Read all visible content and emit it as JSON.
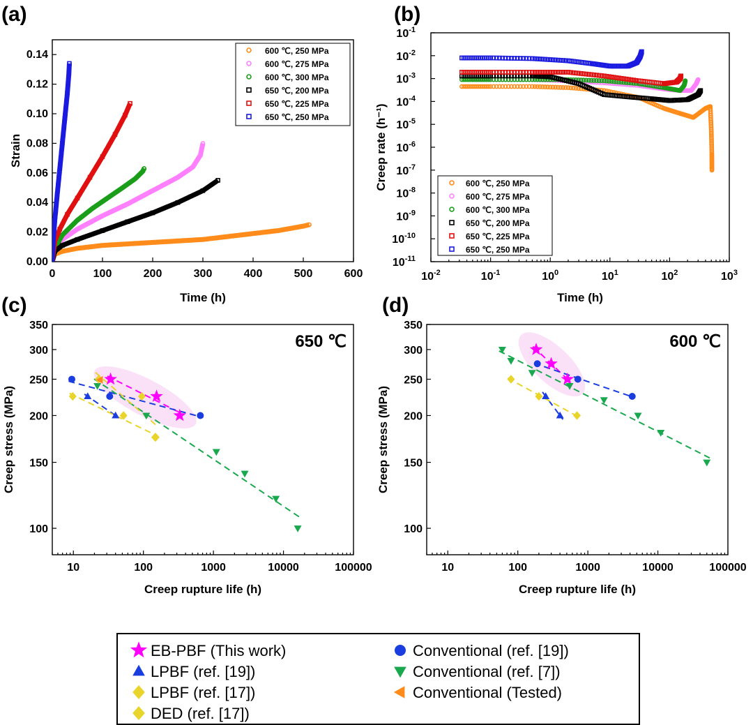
{
  "chart_data": [
    {
      "panel": "(a)",
      "type": "line",
      "xlabel": "Time (h)",
      "ylabel": "Strain",
      "xlim": [
        0,
        600
      ],
      "ylim": [
        0,
        0.15
      ],
      "xticks": [
        "0",
        "100",
        "200",
        "300",
        "400",
        "500",
        "600"
      ],
      "yticks": [
        "0.00",
        "0.02",
        "0.04",
        "0.06",
        "0.08",
        "0.10",
        "0.12",
        "0.14"
      ],
      "legend_position": "top-right",
      "series": [
        {
          "name": "600 ℃, 250 MPa",
          "color": "#ff8c1a",
          "marker": "circle",
          "x": [
            0,
            5,
            20,
            50,
            100,
            150,
            200,
            250,
            300,
            350,
            400,
            450,
            500,
            512
          ],
          "y": [
            0,
            0.005,
            0.007,
            0.009,
            0.011,
            0.012,
            0.013,
            0.014,
            0.015,
            0.017,
            0.019,
            0.021,
            0.024,
            0.025
          ]
        },
        {
          "name": "600 ℃, 275 MPa",
          "color": "#ff80ff",
          "marker": "circle",
          "x": [
            0,
            5,
            20,
            50,
            100,
            150,
            200,
            250,
            280,
            295,
            300
          ],
          "y": [
            0,
            0.008,
            0.015,
            0.022,
            0.031,
            0.039,
            0.048,
            0.057,
            0.064,
            0.072,
            0.08
          ]
        },
        {
          "name": "600 ℃, 300 MPa",
          "color": "#1a9e1a",
          "marker": "circle",
          "x": [
            0,
            5,
            20,
            50,
            80,
            110,
            140,
            165,
            180,
            183
          ],
          "y": [
            0,
            0.009,
            0.018,
            0.028,
            0.036,
            0.043,
            0.05,
            0.056,
            0.061,
            0.063
          ]
        },
        {
          "name": "650 ℃, 200 MPa",
          "color": "#000000",
          "marker": "square",
          "x": [
            0,
            5,
            20,
            50,
            100,
            150,
            200,
            250,
            300,
            330
          ],
          "y": [
            0,
            0.007,
            0.011,
            0.015,
            0.021,
            0.027,
            0.033,
            0.04,
            0.048,
            0.055
          ]
        },
        {
          "name": "650 ℃, 225 MPa",
          "color": "#e01010",
          "marker": "square",
          "x": [
            0,
            5,
            15,
            30,
            50,
            75,
            100,
            125,
            145,
            155
          ],
          "y": [
            0,
            0.014,
            0.022,
            0.032,
            0.043,
            0.057,
            0.071,
            0.086,
            0.099,
            0.107
          ]
        },
        {
          "name": "650 ℃, 250 MPa",
          "color": "#1a1ae0",
          "marker": "square",
          "x": [
            0,
            2,
            5,
            10,
            15,
            20,
            25,
            30,
            33,
            34
          ],
          "y": [
            0,
            0.015,
            0.028,
            0.046,
            0.063,
            0.08,
            0.097,
            0.114,
            0.127,
            0.134
          ]
        }
      ]
    },
    {
      "panel": "(b)",
      "type": "line",
      "xlabel": "Time (h)",
      "ylabel": "Creep rate (h⁻¹)",
      "xscale": "log",
      "yscale": "log",
      "xlim": [
        0.01,
        1000
      ],
      "ylim": [
        1e-11,
        0.1
      ],
      "xticks": [
        "10⁻²",
        "10⁻¹",
        "10⁰",
        "10¹",
        "10²",
        "10³"
      ],
      "yticks": [
        "10⁻¹¹",
        "10⁻¹⁰",
        "10⁻⁹",
        "10⁻⁸",
        "10⁻⁷",
        "10⁻⁶",
        "10⁻⁵",
        "10⁻⁴",
        "10⁻³",
        "10⁻²",
        "10⁻¹"
      ],
      "legend_position": "bottom-left",
      "series": [
        {
          "name": "600 ℃, 250 MPa",
          "color": "#ff8c1a",
          "marker": "circle",
          "x": [
            0.033,
            0.1,
            0.5,
            2,
            8,
            30,
            80,
            150,
            250,
            400,
            480,
            500,
            510,
            512
          ],
          "y": [
            0.00045,
            0.00045,
            0.00045,
            0.0004,
            0.0003,
            0.00015,
            5e-05,
            3e-05,
            2e-05,
            5e-05,
            6e-05,
            5e-06,
            5e-07,
            1e-07
          ]
        },
        {
          "name": "600 ℃, 275 MPa",
          "color": "#ff80ff",
          "marker": "circle",
          "x": [
            0.05,
            0.1,
            0.5,
            2,
            8,
            30,
            80,
            150,
            230,
            280,
            300
          ],
          "y": [
            0.0009,
            0.0009,
            0.0009,
            0.0008,
            0.00065,
            0.0005,
            0.00035,
            0.0003,
            0.0003,
            0.0006,
            0.0009
          ]
        },
        {
          "name": "600 ℃, 300 MPa",
          "color": "#1a9e1a",
          "marker": "circle",
          "x": [
            0.033,
            0.1,
            0.5,
            2,
            8,
            30,
            80,
            150,
            175,
            183
          ],
          "y": [
            0.0009,
            0.0009,
            0.0009,
            0.0009,
            0.0008,
            0.0006,
            0.0004,
            0.0003,
            0.0005,
            0.0008
          ]
        },
        {
          "name": "650 ℃, 200 MPa",
          "color": "#000000",
          "marker": "square",
          "x": [
            0.033,
            0.1,
            0.5,
            1,
            3,
            8,
            20,
            50,
            100,
            200,
            300,
            330
          ],
          "y": [
            0.0013,
            0.0013,
            0.0013,
            0.0012,
            0.0006,
            0.0002,
            0.00016,
            0.00013,
            0.00011,
            0.00012,
            0.0002,
            0.0003
          ]
        },
        {
          "name": "650 ℃, 225 MPa",
          "color": "#e01010",
          "marker": "square",
          "x": [
            0.033,
            0.1,
            0.5,
            2,
            8,
            30,
            80,
            130,
            150,
            155
          ],
          "y": [
            0.0019,
            0.0019,
            0.0019,
            0.0019,
            0.0013,
            0.0008,
            0.0006,
            0.0007,
            0.001,
            0.0013
          ]
        },
        {
          "name": "650 ℃, 250 MPa",
          "color": "#1a1ae0",
          "marker": "square",
          "x": [
            0.033,
            0.1,
            0.5,
            2,
            5,
            10,
            20,
            28,
            32,
            34
          ],
          "y": [
            0.008,
            0.008,
            0.0075,
            0.006,
            0.0045,
            0.0035,
            0.0035,
            0.005,
            0.009,
            0.015
          ]
        }
      ]
    },
    {
      "panel": "(c)",
      "type": "scatter",
      "annotation": "650 ℃",
      "xlabel": "Creep rupture life (h)",
      "ylabel": "Creep stress (MPa)",
      "xscale": "log",
      "yscale": "log",
      "xlim": [
        5,
        100000
      ],
      "ylim": [
        85,
        350
      ],
      "xticks": [
        "10",
        "100",
        "1000",
        "10000",
        "100000"
      ],
      "yticks": [
        "100",
        "150",
        "200",
        "250",
        "300",
        "350"
      ],
      "series": [
        {
          "name": "EB-PBF (This work)",
          "color": "#ff00ff",
          "marker": "star",
          "x": [
            34,
            154,
            330
          ],
          "y": [
            250,
            225,
            200
          ]
        },
        {
          "name": "Conventional (ref. [19])",
          "color": "#1a3de0",
          "marker": "circle",
          "x": [
            9.5,
            33,
            650
          ],
          "y": [
            250,
            225,
            200
          ]
        },
        {
          "name": "LPBF (ref. [19])",
          "color": "#1a3de0",
          "marker": "triangle-up",
          "x": [
            16,
            40
          ],
          "y": [
            225,
            200
          ]
        },
        {
          "name": "Conventional (ref. [7])",
          "color": "#1aa84f",
          "marker": "triangle-down",
          "x": [
            22,
            110,
            1100,
            2800,
            7800,
            16000
          ],
          "y": [
            240,
            200,
            160,
            140,
            120,
            100
          ]
        },
        {
          "name": "LPBF (ref. [17])",
          "color": "#e8d42a",
          "marker": "diamond",
          "x": [
            9.8,
            52,
            147
          ],
          "y": [
            225,
            200,
            175
          ]
        },
        {
          "name": "DED (ref. [17])",
          "color": "#e8d42a",
          "marker": "diamond",
          "x": [
            23,
            95,
            150
          ],
          "y": [
            250,
            225,
            175
          ]
        },
        {
          "name": "Conventional (Tested)",
          "color": "#ff8c1a",
          "marker": "triangle-left",
          "x": [
            24
          ],
          "y": [
            249
          ]
        }
      ]
    },
    {
      "panel": "(d)",
      "type": "scatter",
      "annotation": "600 ℃",
      "xlabel": "Creep rupture life (h)",
      "ylabel": "Creep stress (MPa)",
      "xscale": "log",
      "yscale": "log",
      "xlim": [
        5,
        100000
      ],
      "ylim": [
        85,
        350
      ],
      "xticks": [
        "10",
        "100",
        "1000",
        "10000",
        "100000"
      ],
      "yticks": [
        "100",
        "150",
        "200",
        "250",
        "300",
        "350"
      ],
      "series": [
        {
          "name": "EB-PBF (This work)",
          "color": "#ff00ff",
          "marker": "star",
          "x": [
            183,
            300,
            512
          ],
          "y": [
            300,
            275,
            250
          ]
        },
        {
          "name": "Conventional (ref. [19])",
          "color": "#1a3de0",
          "marker": "circle",
          "x": [
            190,
            720,
            4300
          ],
          "y": [
            275,
            250,
            225
          ]
        },
        {
          "name": "LPBF (ref. [19])",
          "color": "#1a3de0",
          "marker": "triangle-up",
          "x": [
            250,
            400
          ],
          "y": [
            225,
            200
          ]
        },
        {
          "name": "Conventional (ref. [7])",
          "color": "#1aa84f",
          "marker": "triangle-down",
          "x": [
            60,
            80,
            160,
            550,
            1700,
            5200,
            11000,
            50000
          ],
          "y": [
            300,
            280,
            260,
            240,
            220,
            200,
            180,
            150
          ]
        },
        {
          "name": "LPBF (ref. [17])",
          "color": "#e8d42a",
          "marker": "diamond",
          "x": [
            80,
            200,
            700
          ],
          "y": [
            250,
            225,
            200
          ]
        }
      ]
    }
  ],
  "legend_bottom": {
    "col1": [
      {
        "label": "EB-PBF (This work)",
        "marker": "star",
        "color": "#ff00ff"
      },
      {
        "label": "LPBF (ref. [19])",
        "marker": "triangle-up",
        "color": "#1a3de0"
      },
      {
        "label": "LPBF (ref. [17])",
        "marker": "diamond",
        "color": "#e8d42a"
      },
      {
        "label": "DED (ref. [17])",
        "marker": "diamond",
        "color": "#e8d42a"
      }
    ],
    "col2": [
      {
        "label": "Conventional (ref. [19])",
        "marker": "circle",
        "color": "#1a3de0"
      },
      {
        "label": "Conventional (ref. [7])",
        "marker": "triangle-down",
        "color": "#1aa84f"
      },
      {
        "label": "Conventional (Tested)",
        "marker": "triangle-left",
        "color": "#ff8c1a"
      }
    ]
  }
}
